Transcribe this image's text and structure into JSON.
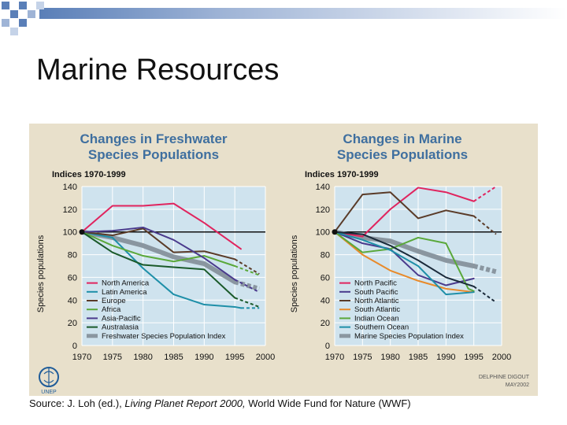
{
  "slide": {
    "title": "Marine Resources",
    "source": {
      "prefix": "Source: J. Loh (ed.), ",
      "italic": "Living Planet Report 2000,",
      "suffix": " World Wide Fund for Nature (WWF)"
    }
  },
  "logo": {
    "text": "UNEP"
  },
  "credit": {
    "name": "DELPHINE DIGOUT",
    "date": "MAY2002"
  },
  "colors": {
    "panel_bg": "#e8e0cb",
    "plot_bg": "#cfe3ee",
    "title_blue": "#3f6f9f",
    "deco_blue": "#5a7fb8"
  },
  "chart_data": [
    {
      "type": "line",
      "title": "Changes in Freshwater Species Populations",
      "index_label": "Indices 1970-1999",
      "ylabel": "Species populations",
      "ylim": [
        0,
        140
      ],
      "xlim": [
        1970,
        2000
      ],
      "yticks": [
        0,
        20,
        40,
        60,
        80,
        100,
        120,
        140
      ],
      "xticks": [
        1970,
        1975,
        1980,
        1985,
        1990,
        1995,
        2000
      ],
      "reference_line": 100,
      "legend_position": "bottom-left",
      "series": [
        {
          "name": "North America",
          "color": "#e0245e",
          "width": 2,
          "x": [
            1970,
            1975,
            1980,
            1985,
            1990,
            1996
          ],
          "y": [
            100,
            123,
            123,
            125,
            108,
            85
          ]
        },
        {
          "name": "Latin America",
          "color": "#1e8fa8",
          "width": 2,
          "x": [
            1970,
            1975,
            1980,
            1985,
            1990,
            1995,
            1996
          ],
          "y": [
            100,
            95,
            68,
            45,
            36,
            34,
            33
          ],
          "dashed_x": [
            1996,
            1999
          ],
          "dashed_y": [
            33,
            33
          ]
        },
        {
          "name": "Europe",
          "color": "#5a3b28",
          "width": 2,
          "x": [
            1970,
            1975,
            1980,
            1985,
            1990,
            1995
          ],
          "y": [
            100,
            97,
            103,
            82,
            83,
            76
          ],
          "dashed_x": [
            1995,
            1999
          ],
          "dashed_y": [
            76,
            63
          ]
        },
        {
          "name": "Africa",
          "color": "#5aa83a",
          "width": 2,
          "x": [
            1970,
            1975,
            1980,
            1985,
            1990,
            1995
          ],
          "y": [
            100,
            88,
            79,
            74,
            79,
            70
          ],
          "dashed_x": [
            1995,
            1999
          ],
          "dashed_y": [
            70,
            62
          ]
        },
        {
          "name": "Asia-Pacific",
          "color": "#4a3a8c",
          "width": 2,
          "x": [
            1970,
            1975,
            1980,
            1985,
            1990,
            1995
          ],
          "y": [
            100,
            101,
            104,
            93,
            77,
            58
          ],
          "dashed_x": [
            1995,
            1999
          ],
          "dashed_y": [
            58,
            47
          ]
        },
        {
          "name": "Australasia",
          "color": "#1a5a2a",
          "width": 2,
          "x": [
            1970,
            1975,
            1980,
            1985,
            1990,
            1995
          ],
          "y": [
            100,
            82,
            71,
            69,
            67,
            42
          ],
          "dashed_x": [
            1995,
            1999
          ],
          "dashed_y": [
            42,
            34
          ]
        },
        {
          "name": "Freshwater Species Population Index",
          "color": "#8a96a0",
          "width": 6,
          "x": [
            1970,
            1975,
            1980,
            1985,
            1990,
            1995
          ],
          "y": [
            100,
            95,
            88,
            78,
            72,
            56
          ],
          "dashed_x": [
            1995,
            1999
          ],
          "dashed_y": [
            56,
            50
          ]
        }
      ]
    },
    {
      "type": "line",
      "title": "Changes in Marine Species Populations",
      "index_label": "Indices 1970-1999",
      "ylabel": "Species populations",
      "ylim": [
        0,
        140
      ],
      "xlim": [
        1970,
        2000
      ],
      "yticks": [
        0,
        20,
        40,
        60,
        80,
        100,
        120,
        140
      ],
      "xticks": [
        1970,
        1975,
        1980,
        1985,
        1990,
        1995,
        2000
      ],
      "reference_line": 100,
      "legend_position": "bottom-left",
      "series": [
        {
          "name": "North Pacific",
          "color": "#e0245e",
          "width": 2,
          "x": [
            1970,
            1975,
            1980,
            1985,
            1990,
            1995
          ],
          "y": [
            100,
            96,
            120,
            139,
            135,
            127
          ],
          "dashed_x": [
            1995,
            1999
          ],
          "dashed_y": [
            127,
            140
          ]
        },
        {
          "name": "South Pacific",
          "color": "#4a3a8c",
          "width": 2,
          "x": [
            1970,
            1975,
            1980,
            1985,
            1990,
            1995
          ],
          "y": [
            100,
            90,
            85,
            62,
            53,
            59
          ]
        },
        {
          "name": "North Atlantic",
          "color": "#5a3b28",
          "width": 2,
          "x": [
            1970,
            1975,
            1980,
            1985,
            1990,
            1995
          ],
          "y": [
            100,
            133,
            135,
            112,
            119,
            114
          ],
          "dashed_x": [
            1995,
            1999
          ],
          "dashed_y": [
            114,
            98
          ]
        },
        {
          "name": "South Atlantic",
          "color": "#e88a2a",
          "width": 2,
          "x": [
            1970,
            1975,
            1980,
            1985,
            1990,
            1995
          ],
          "y": [
            100,
            80,
            66,
            57,
            50,
            47
          ]
        },
        {
          "name": "Indian Ocean",
          "color": "#5aa83a",
          "width": 2,
          "x": [
            1970,
            1975,
            1980,
            1985,
            1990,
            1994,
            1995
          ],
          "y": [
            100,
            82,
            85,
            95,
            90,
            50,
            48
          ]
        },
        {
          "name": "Southern Ocean",
          "color": "#1e8fa8",
          "width": 2,
          "x": [
            1970,
            1975,
            1980,
            1985,
            1990,
            1995
          ],
          "y": [
            100,
            93,
            84,
            70,
            45,
            47
          ]
        },
        {
          "name": "",
          "color": "#1a2a3a",
          "width": 2,
          "x": [
            1970,
            1975,
            1980,
            1985,
            1990,
            1995
          ],
          "y": [
            100,
            98,
            88,
            75,
            60,
            52
          ],
          "dashed_x": [
            1995,
            1999
          ],
          "dashed_y": [
            52,
            38
          ]
        },
        {
          "name": "Marine Species Population Index",
          "color": "#8a96a0",
          "width": 6,
          "x": [
            1970,
            1975,
            1980,
            1985,
            1990,
            1995
          ],
          "y": [
            100,
            95,
            92,
            83,
            75,
            70
          ],
          "dashed_x": [
            1995,
            1999
          ],
          "dashed_y": [
            70,
            65
          ]
        }
      ]
    }
  ]
}
